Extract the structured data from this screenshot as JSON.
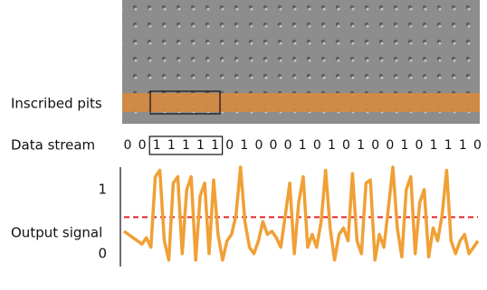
{
  "chart_data": {
    "type": "line",
    "image_label": "Inscribed pits",
    "stream_label": "Data stream",
    "bits": [
      0,
      0,
      1,
      1,
      1,
      1,
      1,
      0,
      1,
      0,
      0,
      0,
      1,
      0,
      1,
      0,
      1,
      0,
      0,
      1,
      0,
      1,
      1,
      1,
      0
    ],
    "ylabel": "Output signal",
    "ylim": [
      -0.2,
      1.35
    ],
    "yticks": [
      0,
      1
    ],
    "threshold": 0.57,
    "threshold_color": "#e0262a",
    "color": "#f0a035",
    "values": [
      0.35,
      0.3,
      0.25,
      0.2,
      0.15,
      0.25,
      0.1,
      1.2,
      1.3,
      0.2,
      -0.1,
      1.1,
      1.2,
      0.0,
      1.0,
      1.2,
      -0.1,
      0.9,
      1.1,
      0.0,
      1.15,
      0.3,
      -0.1,
      0.2,
      0.3,
      0.6,
      1.35,
      0.5,
      0.1,
      0.0,
      0.2,
      0.5,
      0.3,
      0.35,
      0.25,
      0.1,
      0.6,
      1.1,
      0.0,
      0.8,
      1.2,
      0.1,
      0.3,
      0.1,
      0.5,
      1.3,
      0.4,
      -0.1,
      0.3,
      0.4,
      0.2,
      1.25,
      0.2,
      0.0,
      1.1,
      1.15,
      -0.1,
      0.3,
      0.1,
      0.7,
      1.35,
      0.4,
      -0.05,
      1.0,
      1.2,
      0.0,
      0.8,
      1.0,
      -0.05,
      0.4,
      0.2,
      0.6,
      1.3,
      0.2,
      0.0,
      0.2,
      0.3,
      0.0,
      0.1,
      0.2
    ]
  }
}
